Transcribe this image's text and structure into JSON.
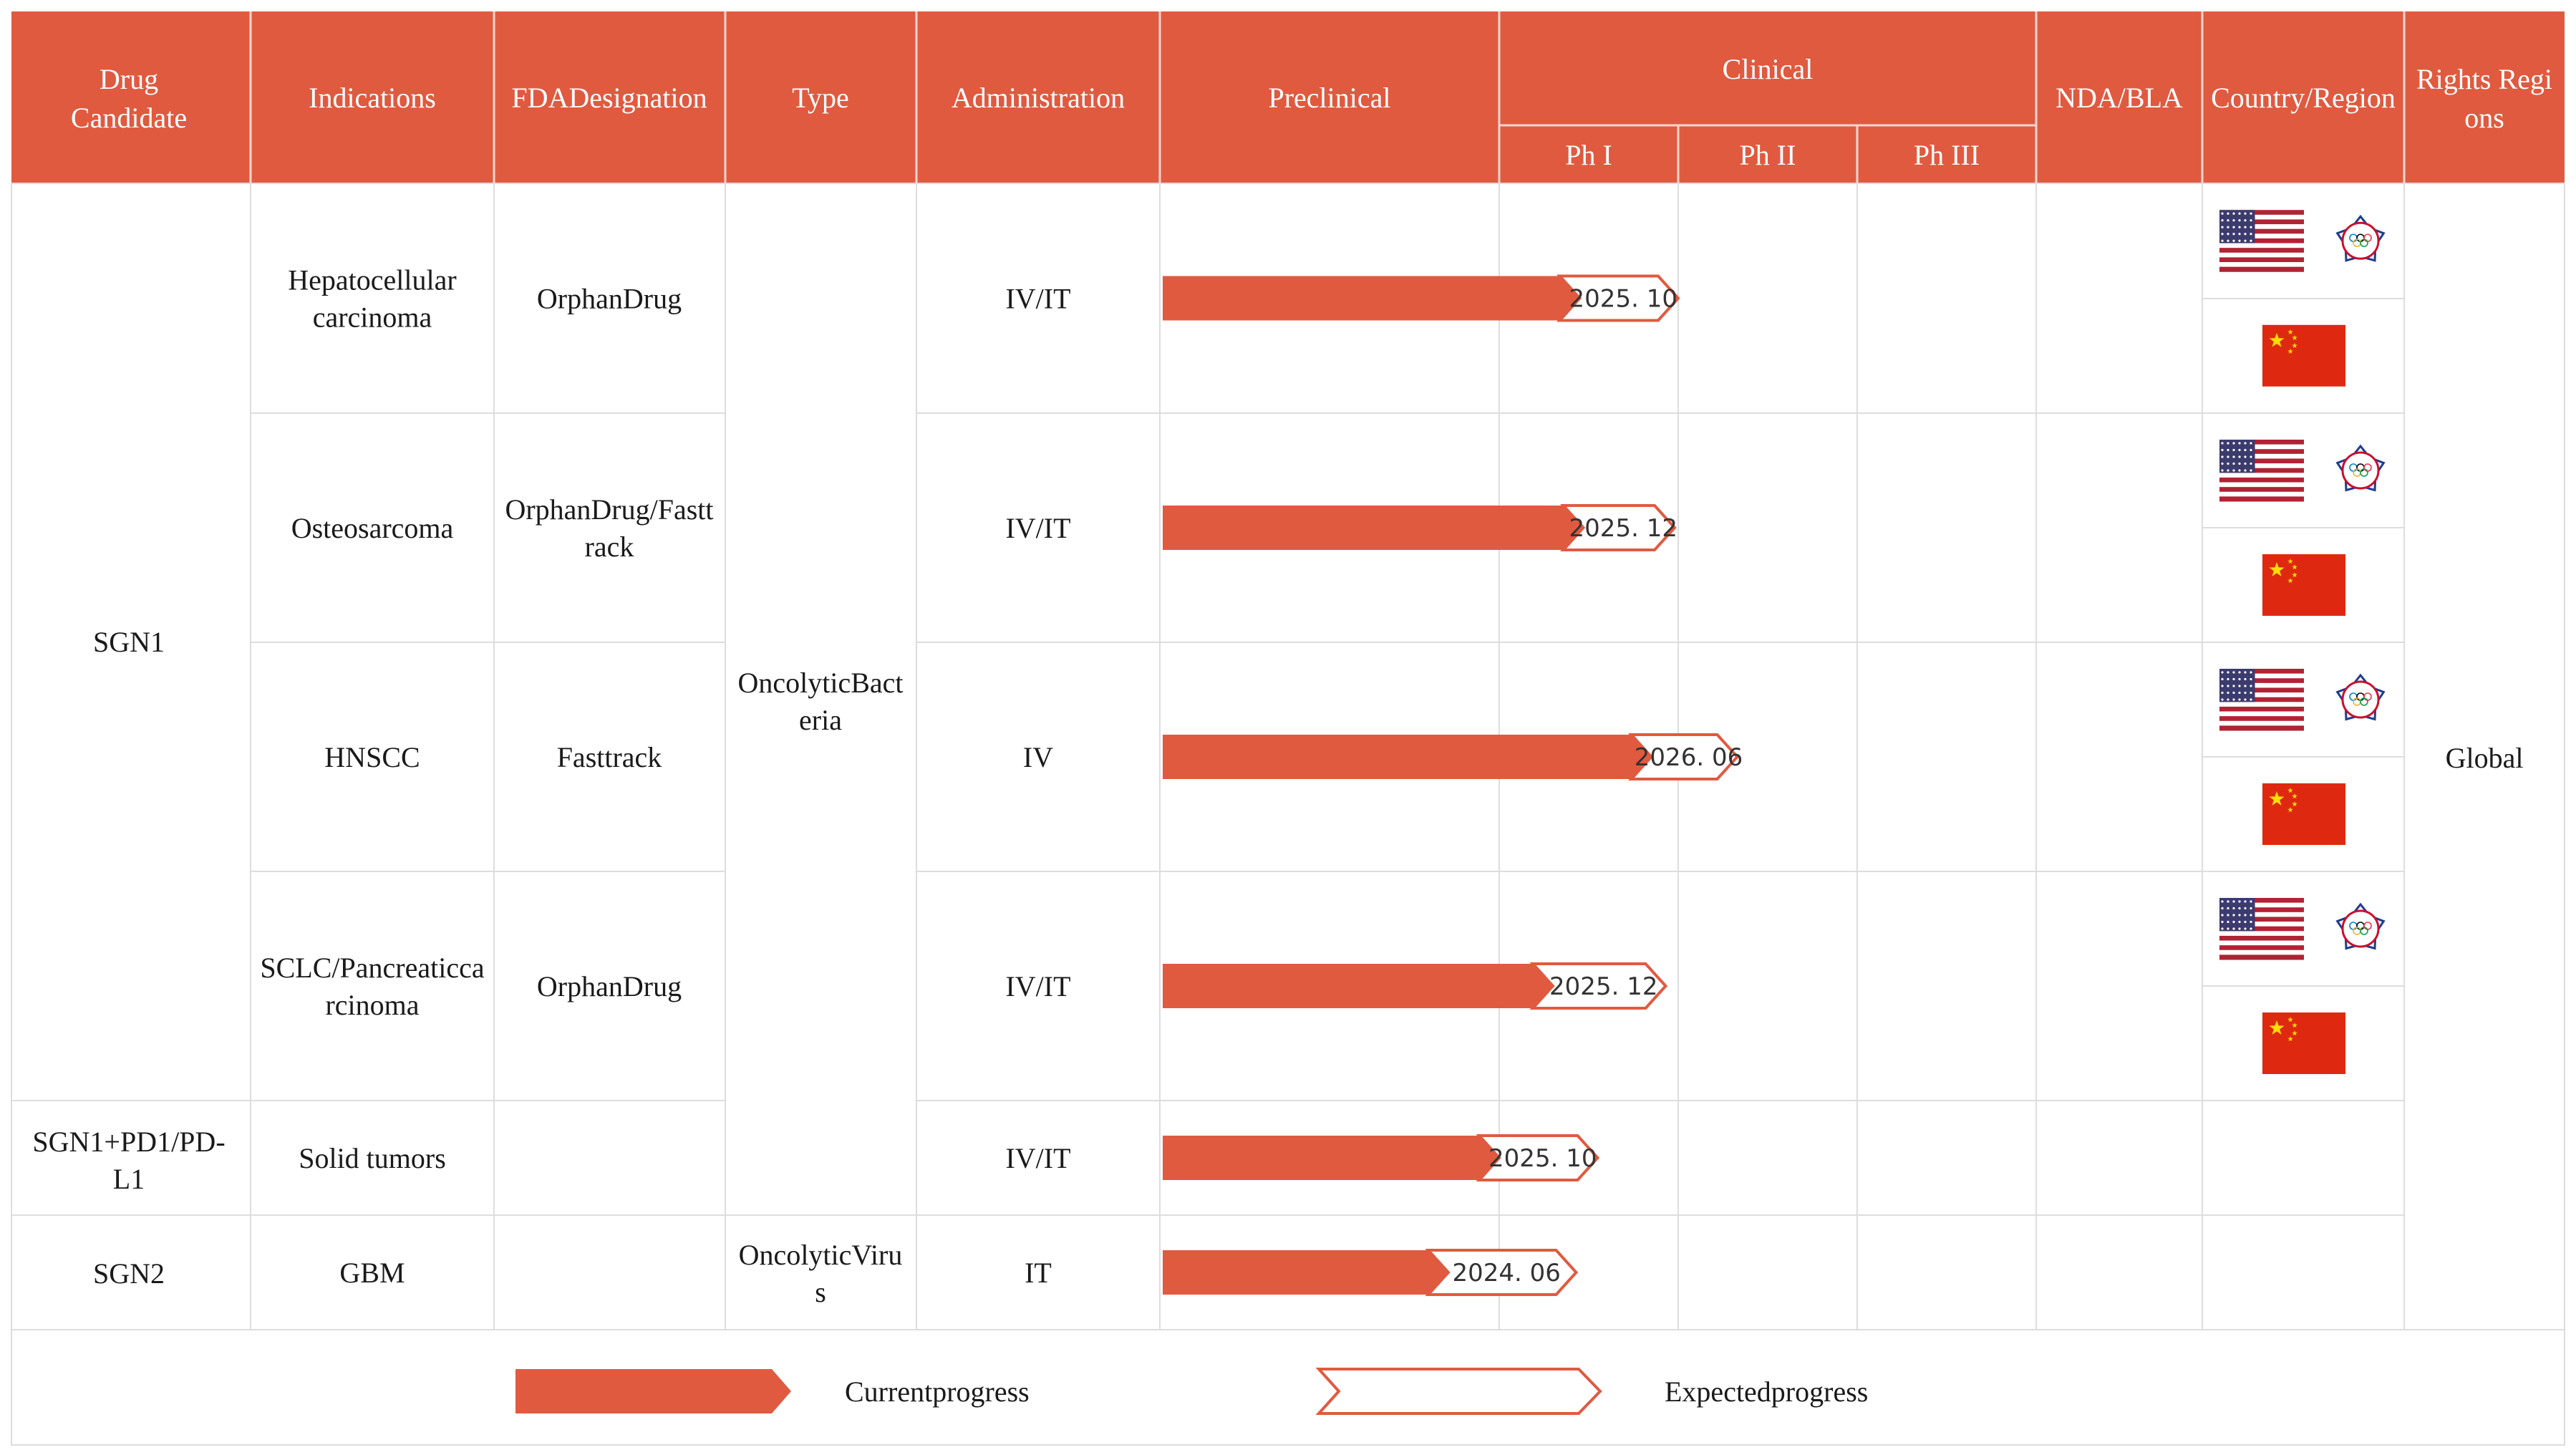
{
  "colors": {
    "header_bg": "#E05A40",
    "bar_fill": "#E05A40",
    "bar_outline": "#E05A40",
    "grid": "#dddddd",
    "text": "#1a1a1a"
  },
  "header": {
    "drug_candidate": [
      "Drug",
      "Candidate"
    ],
    "indications": "Indications",
    "fda_designation": "FDADesignation",
    "type": "Type",
    "administration": "Administration",
    "preclinical": "Preclinical",
    "clinical": "Clinical",
    "ph1": "Ph I",
    "ph2": "Ph II",
    "ph3": "Ph III",
    "nda_bla": "NDA/BLA",
    "country_region": "Country/Region",
    "rights_regions": [
      "Rights Regi",
      "ons"
    ]
  },
  "chart_data": {
    "type": "table",
    "stages": [
      "Preclinical",
      "Ph I",
      "Ph II",
      "Ph III",
      "NDA/BLA"
    ],
    "rows": [
      {
        "drug": "SGN1",
        "indication": [
          "Hepatocellular",
          "carcinoma"
        ],
        "fda": [
          "OrphanDrug"
        ],
        "type": "OncolyticBacteria",
        "administration": "IV/IT",
        "current_progress": 1.45,
        "expected_progress": 2.0,
        "expected_date": "2025. 10",
        "countries": [
          "USA",
          "Chinese Taipei",
          "China"
        ],
        "rights": "Global"
      },
      {
        "drug": "SGN1",
        "indication": [
          "Osteosarcoma"
        ],
        "fda": [
          "OrphanDrug/Fastt",
          "rack"
        ],
        "type": "OncolyticBacteria",
        "administration": "IV/IT",
        "current_progress": 1.47,
        "expected_progress": 1.98,
        "expected_date": "2025. 12",
        "countries": [
          "USA",
          "Chinese Taipei",
          "China"
        ],
        "rights": "Global"
      },
      {
        "drug": "SGN1",
        "indication": [
          "HNSCC"
        ],
        "fda": [
          "Fasttrack"
        ],
        "type": "OncolyticBacteria",
        "administration": "IV",
        "current_progress": 1.85,
        "expected_progress": 2.33,
        "expected_date": "2026. 06",
        "countries": [
          "USA",
          "Chinese Taipei",
          "China"
        ],
        "rights": "Global"
      },
      {
        "drug": "SGN1",
        "indication": [
          "SCLC/Pancreaticca",
          "rcinoma"
        ],
        "fda": [
          "OrphanDrug"
        ],
        "type": "OncolyticBacteria",
        "administration": "IV/IT",
        "current_progress": 1.3,
        "expected_progress": 1.93,
        "expected_date": "2025. 12",
        "countries": [
          "USA",
          "Chinese Taipei",
          "China"
        ],
        "rights": "Global"
      },
      {
        "drug": "SGN1+PD1/PD-L1",
        "indication": [
          "Solid tumors"
        ],
        "fda": [],
        "type": "OncolyticBacteria",
        "administration": "IV/IT",
        "current_progress": 1.0,
        "expected_progress": 1.55,
        "expected_date": "2025. 10",
        "countries": [],
        "rights": "Global"
      },
      {
        "drug": "SGN2",
        "indication": [
          "GBM"
        ],
        "fda": [],
        "type": "OncolyticVirus",
        "administration": "IT",
        "current_progress": 0.85,
        "expected_progress": 1.43,
        "expected_date": "2024. 06",
        "countries": [],
        "rights": ""
      }
    ],
    "legend": [
      "Currentprogress",
      "Expectedprogress"
    ]
  },
  "body": {
    "sgn1": "SGN1",
    "sgn1_pd1": [
      "SGN1+PD1/PD-",
      "L1"
    ],
    "sgn2": "SGN2",
    "type_bacteria": [
      "OncolyticBact",
      "eria"
    ],
    "type_virus": [
      "OncolyticViru",
      "s"
    ],
    "rights_global": "Global"
  },
  "legend": {
    "current": "Currentprogress",
    "expected": "Expectedprogress"
  }
}
